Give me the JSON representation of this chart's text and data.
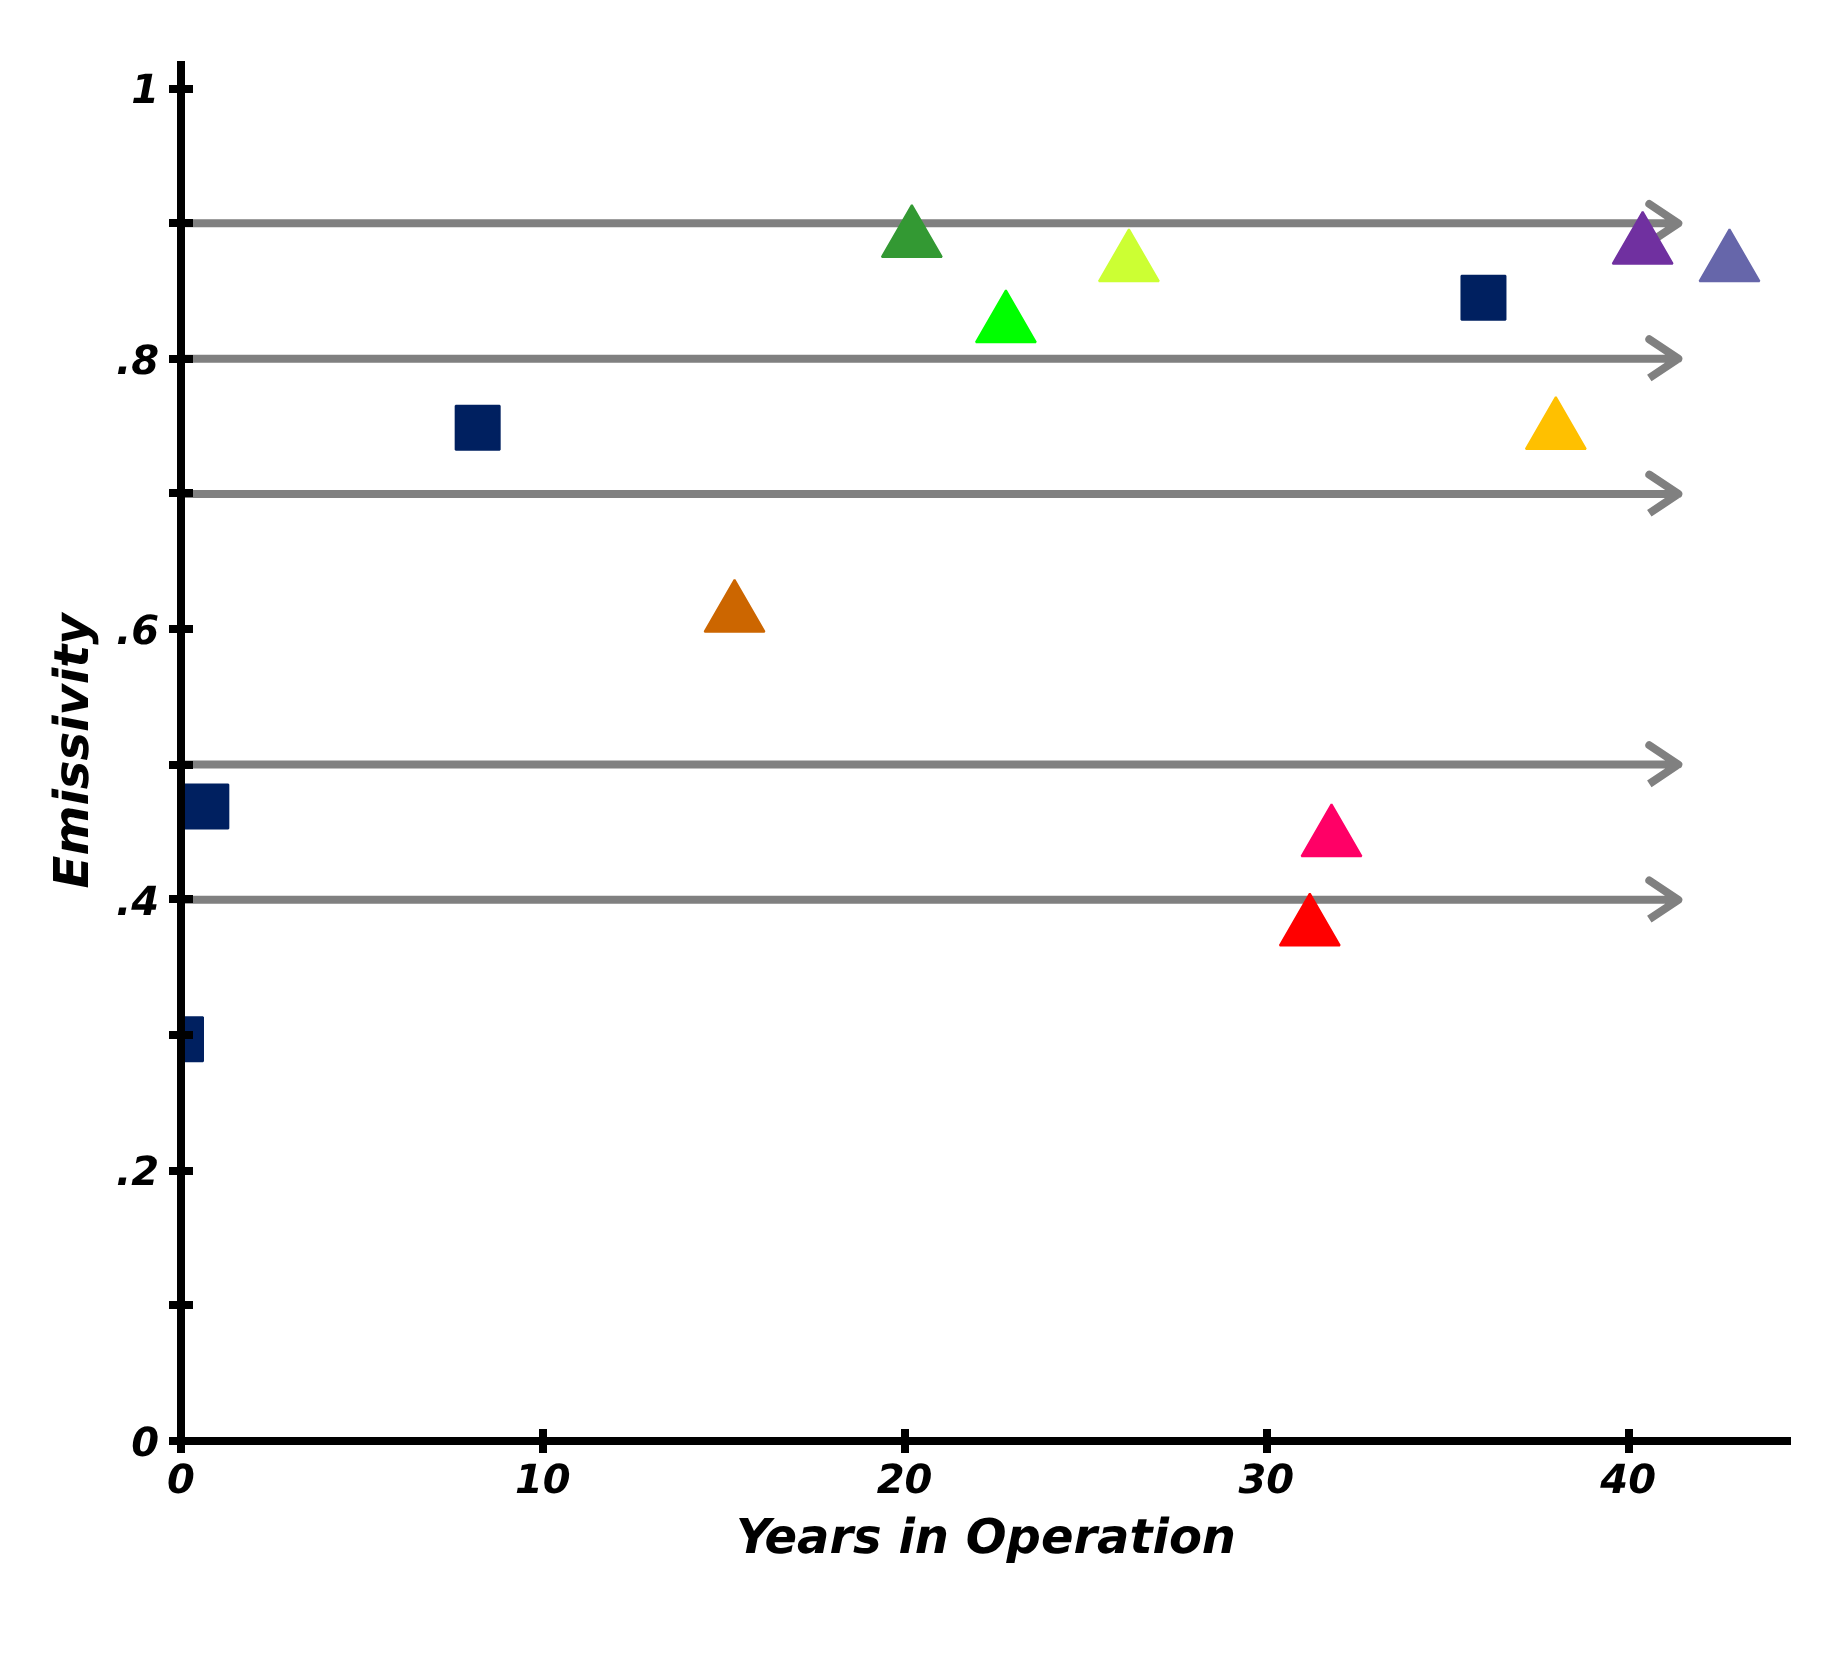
{
  "chart_data": {
    "type": "scatter",
    "xlabel": "Years in Operation",
    "ylabel": "Emissivity",
    "xlim": [
      0,
      44.5
    ],
    "ylim": [
      0,
      1.02
    ],
    "xticks": [
      0,
      10,
      20,
      30,
      40
    ],
    "yticks": [
      0,
      {
        "value": 0.1,
        "label": null
      },
      {
        "value": 0.2,
        "label": ".2"
      },
      {
        "value": 0.3,
        "label": null
      },
      {
        "value": 0.4,
        "label": ".4"
      },
      {
        "value": 0.5,
        "label": null
      },
      {
        "value": 0.6,
        "label": ".6"
      },
      {
        "value": 0.7,
        "label": null
      },
      {
        "value": 0.8,
        "label": ".8"
      },
      {
        "value": 0.9,
        "label": null
      },
      1
    ],
    "grid": false,
    "series": [
      {
        "marker": "square",
        "color": "#002060",
        "x": [
          0,
          0.7,
          8.2,
          36.0
        ],
        "values": [
          0.297,
          0.469,
          0.749,
          0.845
        ]
      },
      {
        "marker": "triangle",
        "colors": [
          "#cc6600",
          "#339933",
          "#00ff00",
          "#ccff33",
          "#ff0000",
          "#ff0066",
          "#ffc000",
          "#7030a0",
          "#6666aa"
        ],
        "x": [
          15.3,
          20.2,
          22.8,
          26.2,
          31.2,
          31.8,
          38.0,
          40.4,
          42.8
        ],
        "values": [
          0.611,
          0.888,
          0.825,
          0.87,
          0.379,
          0.445,
          0.746,
          0.883,
          0.87
        ]
      }
    ],
    "ref_lines": [
      {
        "axis": "y",
        "value": 0.9,
        "color": "#808080",
        "line_style": "solid"
      },
      {
        "axis": "y",
        "value": 0.8,
        "color": "#808080",
        "line_style": "solid"
      },
      {
        "axis": "y",
        "value": 0.7,
        "color": "#808080",
        "line_style": "solid"
      },
      {
        "axis": "y",
        "value": 0.5,
        "color": "#808080",
        "line_style": "solid"
      },
      {
        "axis": "y",
        "value": 0.4,
        "color": "#808080",
        "line_style": "solid"
      }
    ]
  }
}
